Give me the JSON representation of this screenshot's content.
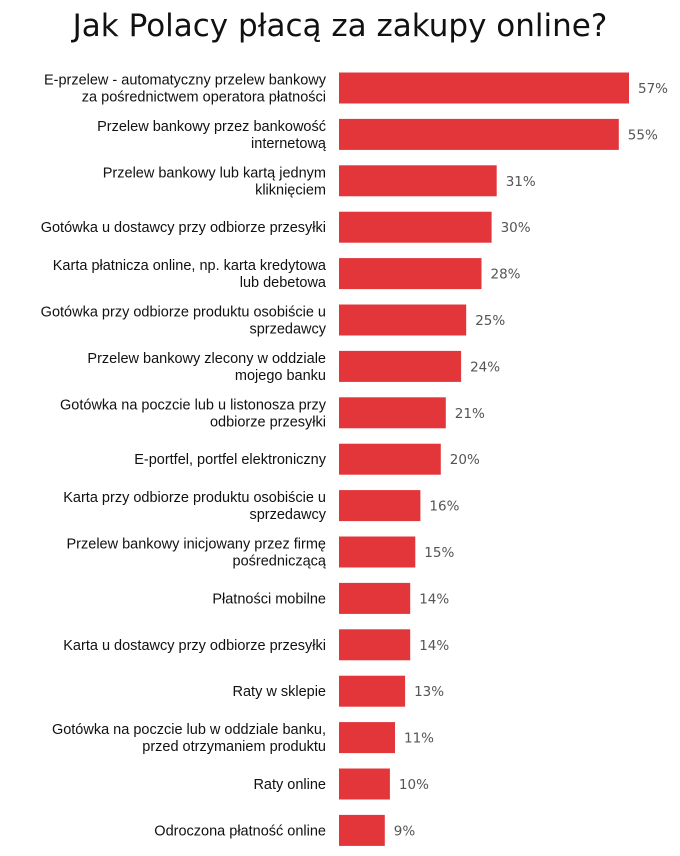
{
  "chart_data": {
    "type": "bar",
    "orientation": "horizontal",
    "title": "Jak Polacy płacą za zakupy online?",
    "categories": [
      [
        "E-przelew - automatyczny przelew bankowy",
        "za pośrednictwem operatora płatności"
      ],
      [
        "Przelew bankowy przez bankowość",
        "internetową"
      ],
      [
        "Przelew bankowy lub kartą jednym",
        "kliknięciem"
      ],
      [
        "Gotówka u dostawcy przy odbiorze przesyłki"
      ],
      [
        "Karta płatnicza online, np. karta kredytowa",
        "lub debetowa"
      ],
      [
        "Gotówka przy odbiorze produktu osobiście u",
        "sprzedawcy"
      ],
      [
        "Przelew bankowy zlecony w oddziale",
        "mojego banku"
      ],
      [
        "Gotówka na poczcie lub u listonosza przy",
        "odbiorze przesyłki"
      ],
      [
        "E-portfel, portfel elektroniczny"
      ],
      [
        "Karta przy odbiorze produktu osobiście u",
        "sprzedawcy"
      ],
      [
        "Przelew bankowy inicjowany przez firmę",
        "pośredniczącą"
      ],
      [
        "Płatności mobilne"
      ],
      [
        "Karta u dostawcy przy odbiorze przesyłki"
      ],
      [
        "Raty w sklepie"
      ],
      [
        "Gotówka na poczcie lub w oddziale banku,",
        "przed otrzymaniem produktu"
      ],
      [
        "Raty online"
      ],
      [
        "Odroczona płatność online"
      ]
    ],
    "values": [
      57,
      55,
      31,
      30,
      28,
      25,
      24,
      21,
      20,
      16,
      15,
      14,
      14,
      13,
      11,
      10,
      9
    ],
    "value_labels": [
      "57%",
      "55%",
      "31%",
      "30%",
      "28%",
      "25%",
      "24%",
      "21%",
      "20%",
      "16%",
      "15%",
      "14%",
      "14%",
      "13%",
      "11%",
      "10%",
      "9%"
    ],
    "unit": "%",
    "xlim": [
      0,
      57
    ],
    "bar_color": "#e3363a",
    "grid": false,
    "legend": "none"
  }
}
